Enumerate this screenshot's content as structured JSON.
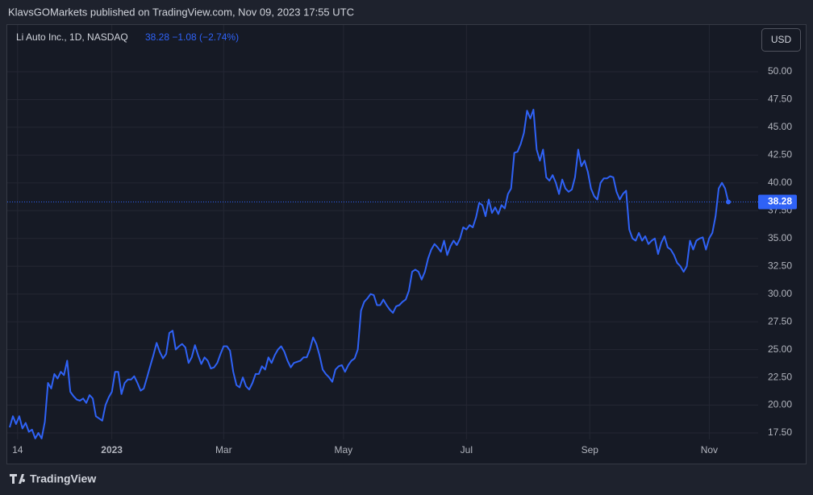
{
  "publisher": "KlavsGOMarkets published on TradingView.com, Nov 09, 2023 17:55 UTC",
  "brand": "TradingView",
  "currency": "USD",
  "chart_data": {
    "type": "line",
    "title": "Li Auto Inc., 1D, NASDAQ",
    "quote": "38.28  −1.08 (−2.74%)",
    "color": "#2f62f6",
    "grid": true,
    "values": [
      18.0,
      19.0,
      18.3,
      19.0,
      17.9,
      18.4,
      17.6,
      17.8,
      17.0,
      17.5,
      17.0,
      18.5,
      22.0,
      21.5,
      22.8,
      22.4,
      23.0,
      22.7,
      24.0,
      21.2,
      20.8,
      20.5,
      20.4,
      20.6,
      20.2,
      20.9,
      20.6,
      19.0,
      18.8,
      18.6,
      20.0,
      20.7,
      21.2,
      23.0,
      23.0,
      21.0,
      22.0,
      22.3,
      22.3,
      22.6,
      22.0,
      21.3,
      21.5,
      22.5,
      23.5,
      24.5,
      25.6,
      24.8,
      24.2,
      24.6,
      26.5,
      26.7,
      25.0,
      25.3,
      25.5,
      25.2,
      23.8,
      24.3,
      25.4,
      24.5,
      23.7,
      24.3,
      24.0,
      23.3,
      23.4,
      23.8,
      24.6,
      25.3,
      25.3,
      24.9,
      23.0,
      21.8,
      21.6,
      22.5,
      21.7,
      21.4,
      22.0,
      22.8,
      22.8,
      23.5,
      23.2,
      24.3,
      23.8,
      24.5,
      25.0,
      25.3,
      24.8,
      24.0,
      23.4,
      23.8,
      23.9,
      24.0,
      24.3,
      24.3,
      25.0,
      26.1,
      25.5,
      24.5,
      23.2,
      22.8,
      22.5,
      22.1,
      23.2,
      23.5,
      23.6,
      23.0,
      23.6,
      24.0,
      24.2,
      25.0,
      28.5,
      29.3,
      29.6,
      30.0,
      29.9,
      29.0,
      29.0,
      29.5,
      29.0,
      28.6,
      28.3,
      28.9,
      29.0,
      29.3,
      29.5,
      30.3,
      32.0,
      32.2,
      32.0,
      31.3,
      32.0,
      33.2,
      34.0,
      34.5,
      34.2,
      33.8,
      34.8,
      33.5,
      34.3,
      34.8,
      34.4,
      35.0,
      36.0,
      35.8,
      36.2,
      36.0,
      36.9,
      38.2,
      38.0,
      37.0,
      38.5,
      37.3,
      37.8,
      37.2,
      38.0,
      37.7,
      39.0,
      39.5,
      42.7,
      42.8,
      43.5,
      44.5,
      46.5,
      45.8,
      46.6,
      43.0,
      42.0,
      43.0,
      40.5,
      40.2,
      40.7,
      40.0,
      39.0,
      40.3,
      39.5,
      39.2,
      39.4,
      40.5,
      43.0,
      41.5,
      42.0,
      41.0,
      39.5,
      38.8,
      38.5,
      40.0,
      40.4,
      40.4,
      40.6,
      40.5,
      39.2,
      38.5,
      39.0,
      39.3,
      35.8,
      35.0,
      34.8,
      35.5,
      34.8,
      35.2,
      34.5,
      34.8,
      35.0,
      33.6,
      34.6,
      35.2,
      34.2,
      34.0,
      33.5,
      32.8,
      32.5,
      32.0,
      32.5,
      34.8,
      34.0,
      34.8,
      35.0,
      35.1,
      34.0,
      35.0,
      35.5,
      37.0,
      39.5,
      40.0,
      39.5,
      38.28
    ],
    "xlim": [
      -3,
      234.3
    ],
    "xticks": [
      {
        "value": 2.5,
        "label": "14"
      },
      {
        "value": 32,
        "label": "2023"
      },
      {
        "value": 67,
        "label": "Mar"
      },
      {
        "value": 104.5,
        "label": "May"
      },
      {
        "value": 143,
        "label": "Jul"
      },
      {
        "value": 181.6,
        "label": "Sep"
      },
      {
        "value": 219,
        "label": "Nov"
      }
    ],
    "ylim": [
      16.92,
      54.28
    ],
    "yticks": [
      {
        "value": 17.5,
        "label": "17.50"
      },
      {
        "value": 20,
        "label": "20.00"
      },
      {
        "value": 22.5,
        "label": "22.50"
      },
      {
        "value": 25,
        "label": "25.00"
      },
      {
        "value": 27.5,
        "label": "27.50"
      },
      {
        "value": 30,
        "label": "30.00"
      },
      {
        "value": 32.5,
        "label": "32.50"
      },
      {
        "value": 35,
        "label": "35.00"
      },
      {
        "value": 37.5,
        "label": "37.50"
      },
      {
        "value": 40,
        "label": "40.00"
      },
      {
        "value": 42.5,
        "label": "42.50"
      },
      {
        "value": 45,
        "label": "45.00"
      },
      {
        "value": 47.5,
        "label": "47.50"
      },
      {
        "value": 50,
        "label": "50.00"
      }
    ]
  }
}
